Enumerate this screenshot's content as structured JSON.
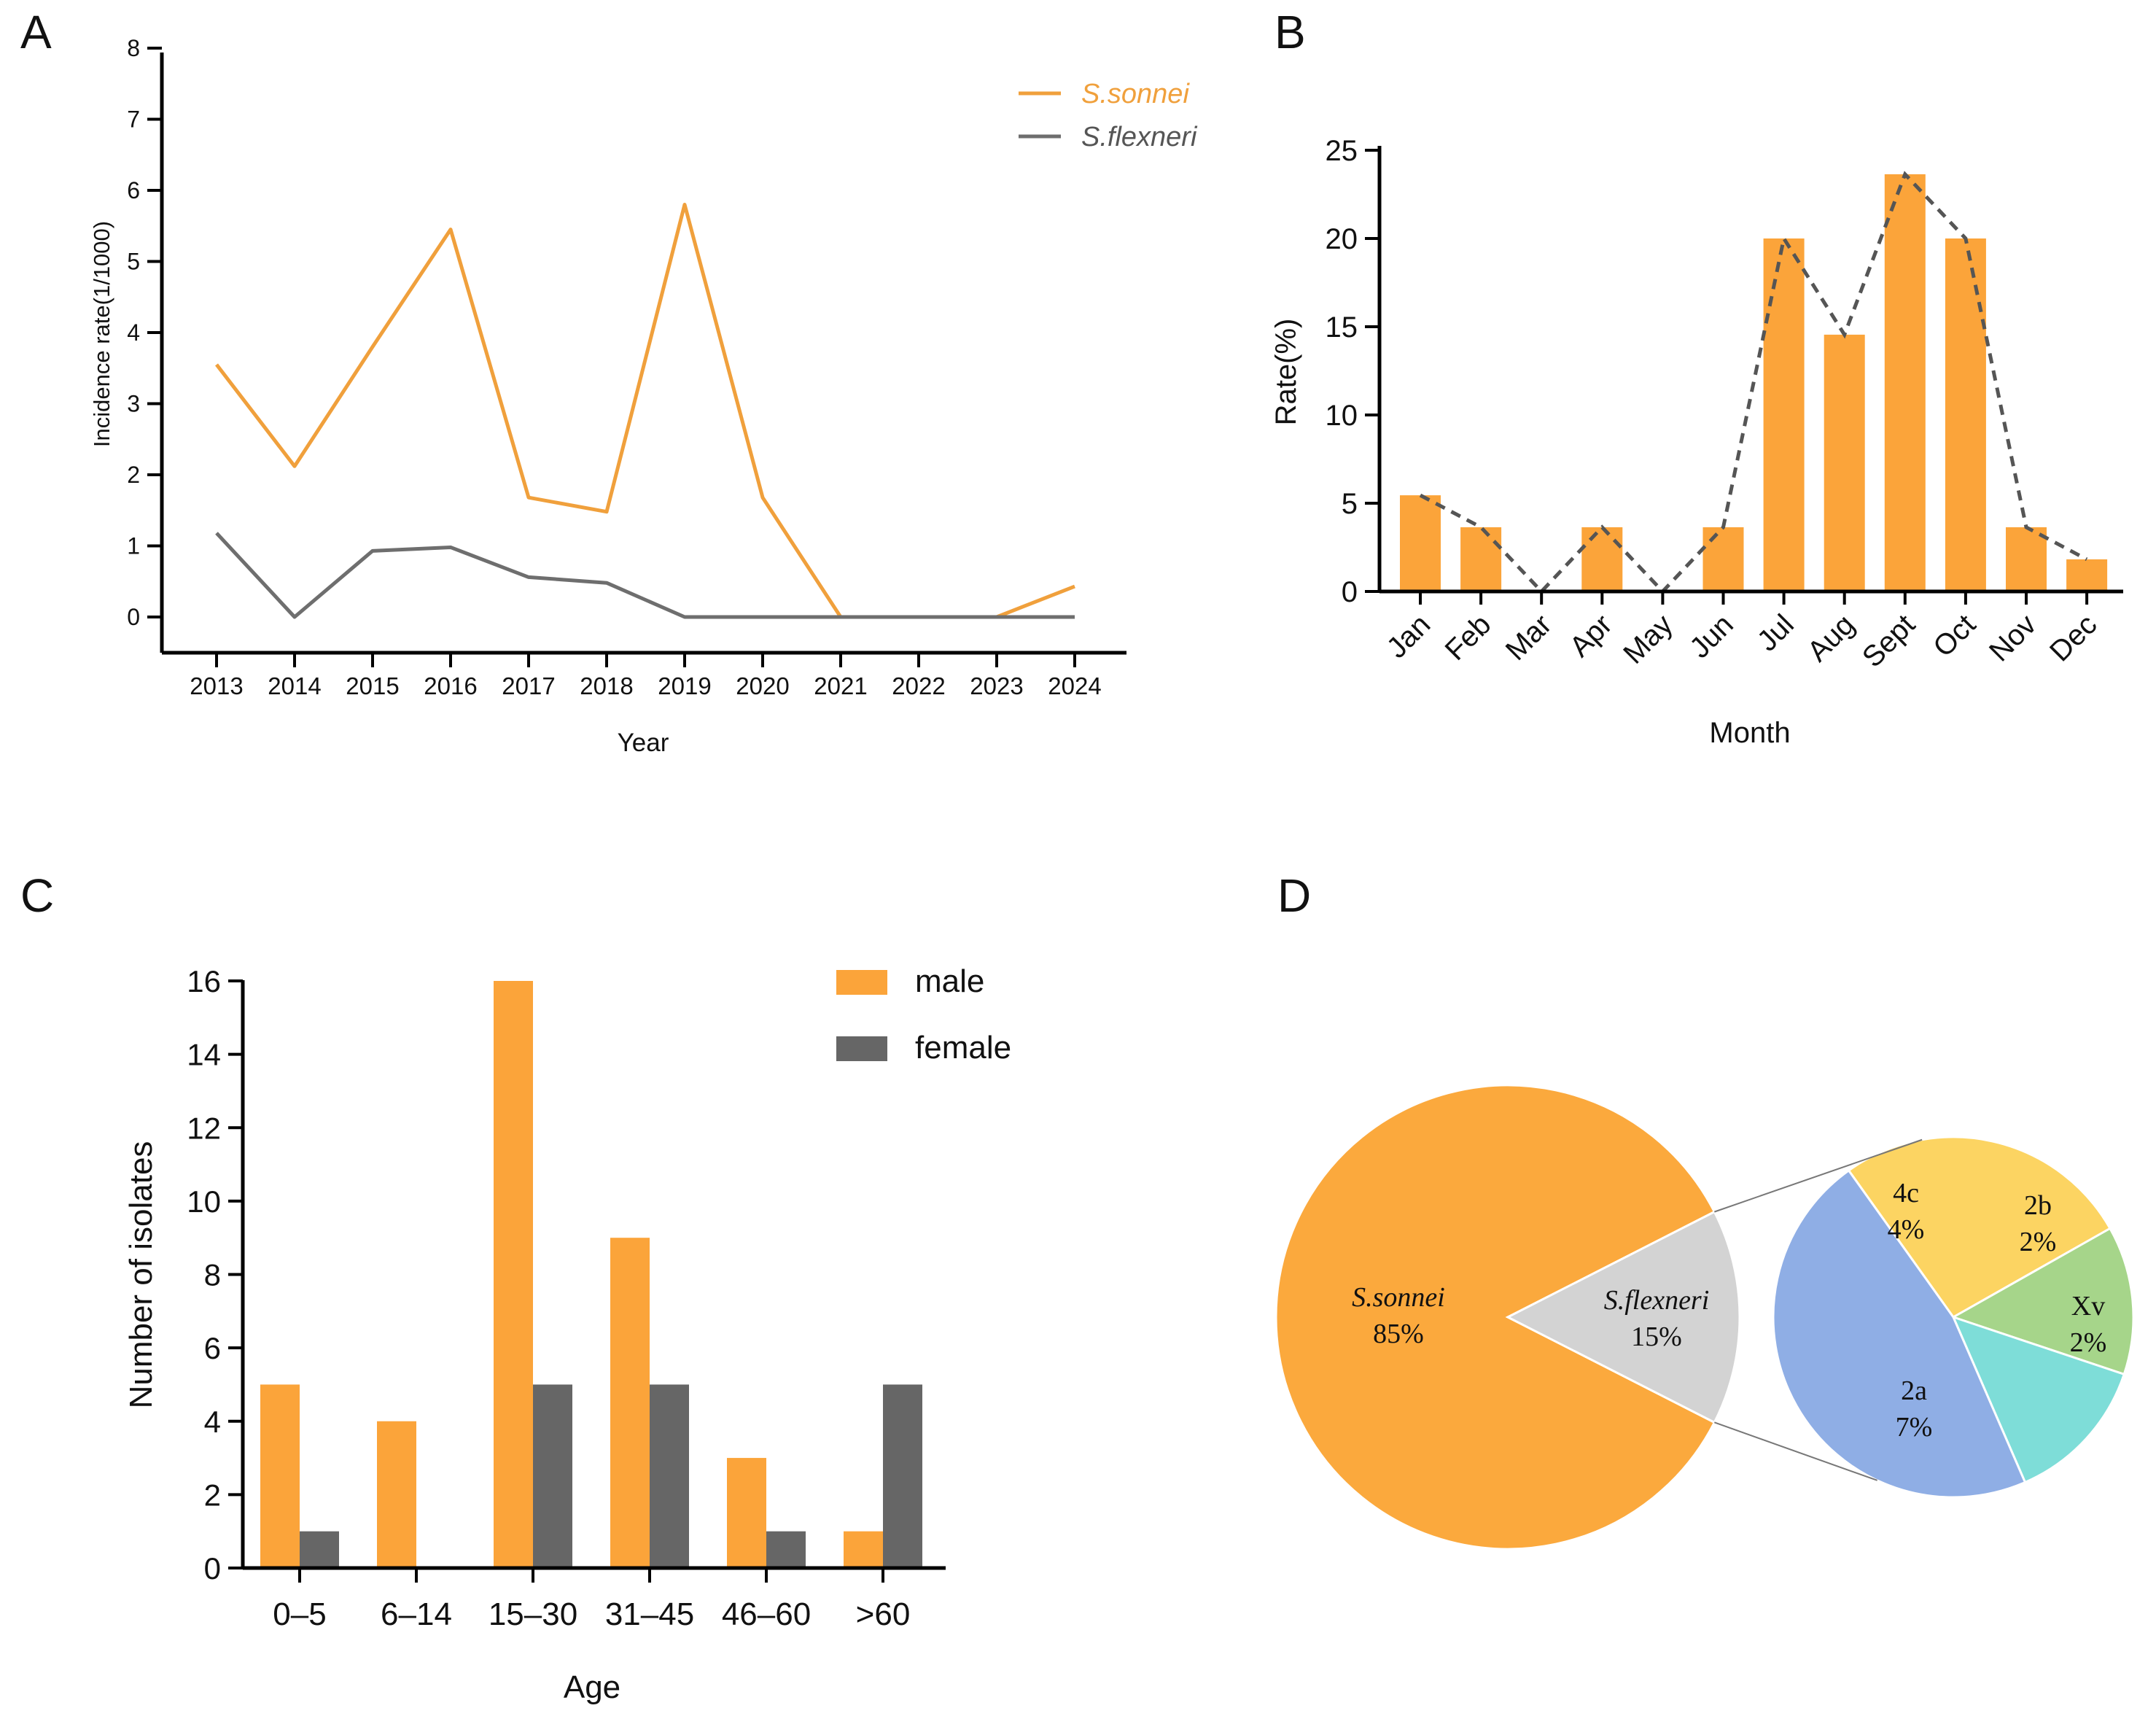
{
  "colors": {
    "orange": "#FBA43A",
    "line_orange": "#F0A03C",
    "gray": "#666666",
    "line_gray": "#6E6E6E",
    "pie_orange": "#FBA93D",
    "pie_gray": "#D3D3D3",
    "pie_yellow": "#FCD462",
    "pie_green": "#A6D58A",
    "pie_cyan": "#7EDDD8",
    "pie_blue": "#8FAEE5",
    "axis": "#000000"
  },
  "chart_data": [
    {
      "panel": "A",
      "type": "line",
      "xlabel": "Year",
      "ylabel": "Incidence rate(1/1000)",
      "x": [
        "2013",
        "2014",
        "2015",
        "2016",
        "2017",
        "2018",
        "2019",
        "2020",
        "2021",
        "2022",
        "2023",
        "2024"
      ],
      "ylim": [
        0,
        8
      ],
      "yticks": [
        0,
        1,
        2,
        3,
        4,
        5,
        6,
        7,
        8
      ],
      "legend_position": "top-right",
      "series": [
        {
          "name": "S.sonnei",
          "color": "#F0A03C",
          "values": [
            3.55,
            2.12,
            3.8,
            5.45,
            1.68,
            1.48,
            5.8,
            1.68,
            0,
            0,
            0,
            0.43
          ]
        },
        {
          "name": "S.flexneri",
          "color": "#6E6E6E",
          "values": [
            1.18,
            0,
            0.93,
            0.98,
            0.56,
            0.48,
            0,
            0,
            0,
            0,
            0,
            0
          ]
        }
      ]
    },
    {
      "panel": "B",
      "type": "bar",
      "xlabel": "Month",
      "ylabel": "Rate(%)",
      "categories": [
        "Jan",
        "Feb",
        "Mar",
        "Apr",
        "May",
        "Jun",
        "Jul",
        "Aug",
        "Sept",
        "Oct",
        "Nov",
        "Dec"
      ],
      "values": [
        5.45,
        3.64,
        0,
        3.64,
        0,
        3.64,
        20,
        14.55,
        23.64,
        20,
        3.64,
        1.82
      ],
      "ylim": [
        0,
        25
      ],
      "yticks": [
        0,
        5,
        10,
        15,
        20,
        25
      ],
      "trend_line": "dashed"
    },
    {
      "panel": "C",
      "type": "bar",
      "xlabel": "Age",
      "ylabel": "Number of isolates",
      "categories": [
        "0–5",
        "6–14",
        "15–30",
        "31–45",
        "46–60",
        ">60"
      ],
      "ylim": [
        0,
        16
      ],
      "yticks": [
        0,
        2,
        4,
        6,
        8,
        10,
        12,
        14,
        16
      ],
      "legend_position": "top-right",
      "series": [
        {
          "name": "male",
          "color": "#FBA43A",
          "values": [
            5,
            4,
            16,
            9,
            3,
            1
          ]
        },
        {
          "name": "female",
          "color": "#666666",
          "values": [
            1,
            0,
            5,
            5,
            1,
            5
          ]
        }
      ]
    },
    {
      "panel": "D",
      "type": "pie",
      "slices": [
        {
          "name": "S.sonnei",
          "pct": "85%",
          "value": 85,
          "color": "#FBA93D"
        },
        {
          "name": "S.flexneri",
          "pct": "15%",
          "value": 15,
          "color": "#D3D3D3"
        }
      ],
      "sub_pie": {
        "parent": "S.flexneri",
        "slices": [
          {
            "name": "4c",
            "pct": "4%",
            "value": 4,
            "color": "#FCD462"
          },
          {
            "name": "2b",
            "pct": "2%",
            "value": 2,
            "color": "#A6D58A"
          },
          {
            "name": "Xv",
            "pct": "2%",
            "value": 2,
            "color": "#7EDDD8"
          },
          {
            "name": "2a",
            "pct": "7%",
            "value": 7,
            "color": "#8FAEE5"
          }
        ]
      }
    }
  ],
  "panels": {
    "a": "A",
    "b": "B",
    "c": "C",
    "d": "D"
  }
}
